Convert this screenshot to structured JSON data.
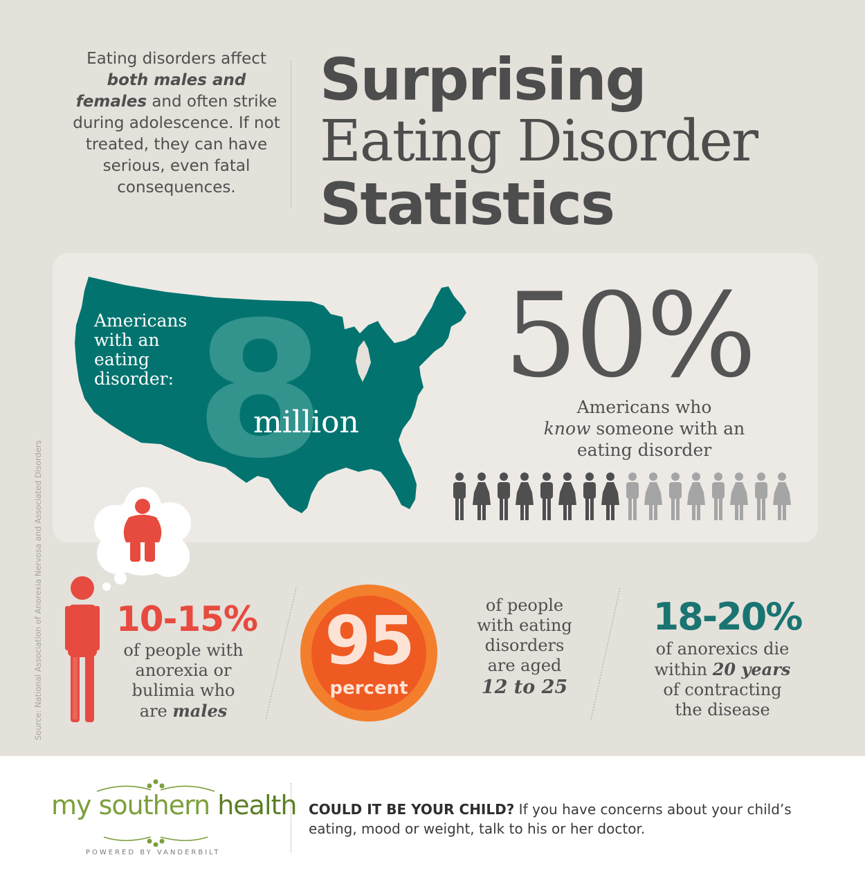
{
  "intro": {
    "pre": "Eating disorders affect ",
    "emph": "both males and females",
    "post": " and often strike during adolescence. If not treated, they can have serious, even fatal consequences."
  },
  "title": {
    "line1": "Surprising",
    "line2": "Eating Disorder",
    "line3": "Statistics"
  },
  "map_stat": {
    "label_lines": [
      "Americans",
      "with an",
      "eating",
      "disorder:"
    ],
    "number": "8",
    "unit": "million"
  },
  "know_stat": {
    "value": "50%",
    "line1": "Americans who",
    "line2_emph": "know",
    "line2_rest": " someone with an",
    "line3": "eating disorder",
    "people_total": 16,
    "people_highlighted": 8
  },
  "source": "Source: National Association of Anorexia Nervosa and Associated Disorders",
  "male_stat": {
    "value": "10-15%",
    "lines": [
      "of people with",
      "anorexia or",
      "bulimia who"
    ],
    "last_pre": "are ",
    "last_emph": "males"
  },
  "age_stat": {
    "number": "95",
    "unit": "percent",
    "lines": [
      "of people",
      "with eating",
      "disorders",
      "are aged"
    ],
    "emph": "12 to 25"
  },
  "death_stat": {
    "value": "18-20%",
    "line1": "of anorexics die",
    "line2_pre": "within ",
    "line2_emph": "20 years",
    "line3": "of contracting",
    "line4": "the disease"
  },
  "footer": {
    "logo_part1": "my southern",
    "logo_part2": " health",
    "powered": "POWERED BY VANDERBILT",
    "cta_bold": "COULD IT BE YOUR CHILD?",
    "cta_rest": " If you have concerns about your child’s eating, mood or weight, talk to his or her doctor."
  },
  "colors": {
    "background": "#e4e1db",
    "teal": "#03736f",
    "red": "#e74a3f",
    "orange": "#f37f2c",
    "dark_gray": "#4d4d4d",
    "light_gray": "#a5a5a5",
    "logo_green": "#7b9f3b"
  }
}
